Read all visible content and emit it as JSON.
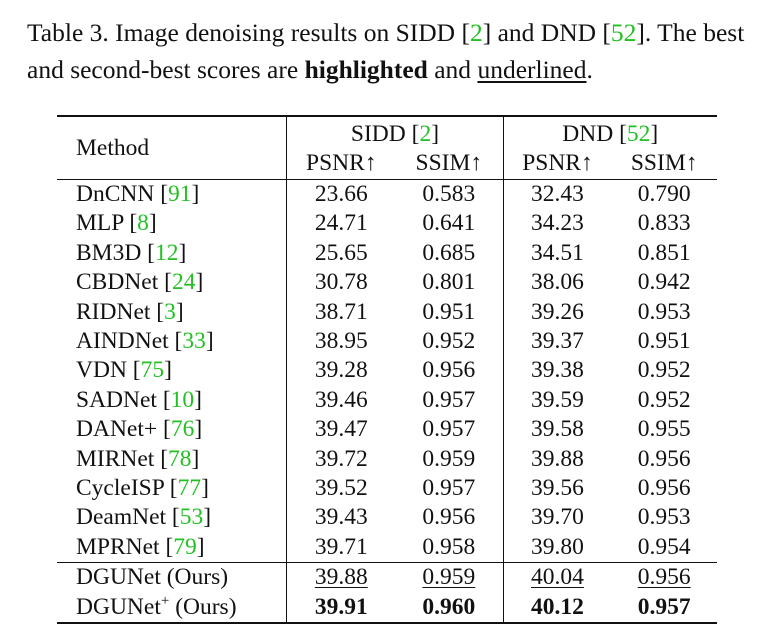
{
  "caption": {
    "prefix": "Table 3. Image denoising results on SIDD [",
    "ref_sidd": "2",
    "middle": "] and DND [",
    "ref_dnd": "52",
    "suffix": "]. The best and second-best scores are ",
    "highlighted": "highlighted",
    "and": " and ",
    "underlined": "underlined",
    "end": "."
  },
  "table": {
    "method_header": "Method",
    "groups": [
      {
        "name": "SIDD",
        "ref": "2"
      },
      {
        "name": "DND",
        "ref": "52"
      }
    ],
    "metrics": [
      "PSNR↑",
      "SSIM↑",
      "PSNR↑",
      "SSIM↑"
    ],
    "rows": [
      {
        "method": "DnCNN",
        "ref": "91",
        "values": [
          "23.66",
          "0.583",
          "32.43",
          "0.790"
        ]
      },
      {
        "method": "MLP",
        "ref": "8",
        "values": [
          "24.71",
          "0.641",
          "34.23",
          "0.833"
        ]
      },
      {
        "method": "BM3D",
        "ref": "12",
        "values": [
          "25.65",
          "0.685",
          "34.51",
          "0.851"
        ]
      },
      {
        "method": "CBDNet",
        "ref": "24",
        "values": [
          "30.78",
          "0.801",
          "38.06",
          "0.942"
        ]
      },
      {
        "method": "RIDNet",
        "ref": "3",
        "values": [
          "38.71",
          "0.951",
          "39.26",
          "0.953"
        ]
      },
      {
        "method": "AINDNet",
        "ref": "33",
        "values": [
          "38.95",
          "0.952",
          "39.37",
          "0.951"
        ]
      },
      {
        "method": "VDN",
        "ref": "75",
        "values": [
          "39.28",
          "0.956",
          "39.38",
          "0.952"
        ]
      },
      {
        "method": "SADNet",
        "ref": "10",
        "values": [
          "39.46",
          "0.957",
          "39.59",
          "0.952"
        ]
      },
      {
        "method": "DANet+",
        "ref": "76",
        "values": [
          "39.47",
          "0.957",
          "39.58",
          "0.955"
        ]
      },
      {
        "method": "MIRNet",
        "ref": "78",
        "values": [
          "39.72",
          "0.959",
          "39.88",
          "0.956"
        ]
      },
      {
        "method": "CycleISP",
        "ref": "77",
        "values": [
          "39.52",
          "0.957",
          "39.56",
          "0.956"
        ]
      },
      {
        "method": "DeamNet",
        "ref": "53",
        "values": [
          "39.43",
          "0.956",
          "39.70",
          "0.953"
        ]
      },
      {
        "method": "MPRNet",
        "ref": "79",
        "values": [
          "39.71",
          "0.958",
          "39.80",
          "0.954"
        ]
      }
    ],
    "ours": [
      {
        "method": "DGUNet (Ours)",
        "sup": "",
        "values": [
          "39.88",
          "0.959",
          "40.04",
          "0.956"
        ],
        "style": "underlined"
      },
      {
        "method": "DGUNet",
        "sup": "+",
        "method_suffix": " (Ours)",
        "values": [
          "39.91",
          "0.960",
          "40.12",
          "0.957"
        ],
        "style": "bold"
      }
    ]
  }
}
